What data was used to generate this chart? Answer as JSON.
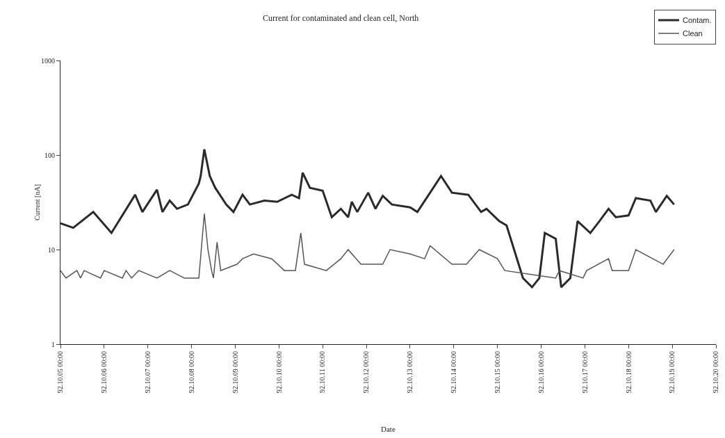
{
  "chart_data": {
    "type": "line",
    "title": "Current for contaminated and clean cell, North",
    "xlabel": "Date",
    "ylabel": "Current [nA]",
    "log": "y",
    "grid": false,
    "legend": "top right",
    "marker": "none",
    "line_style": "solid",
    "xlim": [
      "--10-05",
      "--10-20"
    ],
    "xticks": [
      {
        "value": "--10-05",
        "label": "92.10.05 00:00"
      },
      {
        "value": "--10-06",
        "label": "92.10.06 00:00"
      },
      {
        "value": "--10-07",
        "label": "92.10.07 00:00"
      },
      {
        "value": "--10-08",
        "label": "92.10.08 00:00"
      },
      {
        "value": "--10-09",
        "label": "92.10.09 00:00"
      },
      {
        "value": "--10-10",
        "label": "92.10.10 00:00"
      },
      {
        "value": "--10-11",
        "label": "92.10.11 00:00"
      },
      {
        "value": "--10-12",
        "label": "92.10.12 00:00"
      },
      {
        "value": "--10-13",
        "label": "92.10.13 00:00"
      },
      {
        "value": "--10-14",
        "label": "92.10.14 00:00"
      },
      {
        "value": "--10-15",
        "label": "92.10.15 00:00"
      },
      {
        "value": "--10-16",
        "label": "92.10.16 00:00"
      },
      {
        "value": "--10-17",
        "label": "92.10.17 00:00"
      },
      {
        "value": "--10-18",
        "label": "92.10.18 00:00"
      },
      {
        "value": "--10-19",
        "label": "92.10.19 00:00"
      },
      {
        "value": "--10-20",
        "label": "92.10.20 00:00"
      }
    ],
    "ylim": [
      1,
      1000
    ],
    "yticks": [
      1,
      10,
      100,
      1000
    ],
    "series": [
      {
        "name": "Contam.",
        "color": "#2a2a2a",
        "x": [
          "--10-05T00:00",
          "--10-05T07:00",
          "--10-05T18:00",
          "--10-06T04:00",
          "--10-06T17:00",
          "--10-06T21:00",
          "--10-07T05:00",
          "--10-07T08:00",
          "--10-07T12:00",
          "--10-07T16:00",
          "--10-07T22:00",
          "--10-08T04:00",
          "--10-08T05:00",
          "--10-08T07:00",
          "--10-08T10:00",
          "--10-08T13:00",
          "--10-08T19:00",
          "--10-08T23:00",
          "--10-09T04:00",
          "--10-09T08:00",
          "--10-09T16:00",
          "--10-09T23:00",
          "--10-10T07:00",
          "--10-10T11:00",
          "--10-10T13:00",
          "--10-10T17:00",
          "--10-11T00:00",
          "--10-11T05:00",
          "--10-11T10:00",
          "--10-11T14:00",
          "--10-11T16:00",
          "--10-11T19:00",
          "--10-12T01:00",
          "--10-12T05:00",
          "--10-12T09:00",
          "--10-12T14:00",
          "--10-13T00:00",
          "--10-13T04:00",
          "--10-13T11:00",
          "--10-13T17:00",
          "--10-13T23:00",
          "--10-14T08:00",
          "--10-14T15:00",
          "--10-14T18:00",
          "--10-15T01:00",
          "--10-15T05:00",
          "--10-15T14:00",
          "--10-15T19:00",
          "--10-15T23:00",
          "--10-16T02:00",
          "--10-16T08:00",
          "--10-16T11:00",
          "--10-16T16:00",
          "--10-16T20:00",
          "--10-17T03:00",
          "--10-17T08:00",
          "--10-17T13:00",
          "--10-17T17:00",
          "--10-18T00:00",
          "--10-18T04:00",
          "--10-18T12:00",
          "--10-18T15:00",
          "--10-18T21:00",
          "--10-19T01:00"
        ],
        "values": [
          19,
          17,
          25,
          15,
          38,
          25,
          43,
          25,
          33,
          27,
          30,
          50,
          60,
          115,
          60,
          45,
          30,
          25,
          38,
          30,
          33,
          32,
          38,
          35,
          65,
          45,
          42,
          22,
          27,
          22,
          32,
          25,
          40,
          27,
          37,
          30,
          28,
          25,
          40,
          60,
          40,
          38,
          25,
          27,
          20,
          18,
          5,
          4,
          5,
          15,
          13,
          4,
          5,
          20,
          15,
          20,
          27,
          22,
          23,
          35,
          33,
          25,
          37,
          30
        ]
      },
      {
        "name": "Clean",
        "color": "#555555",
        "x": [
          "--10-05T00:00",
          "--10-05T03:00",
          "--10-05T09:00",
          "--10-05T11:00",
          "--10-05T13:00",
          "--10-05T22:00",
          "--10-06T00:00",
          "--10-06T10:00",
          "--10-06T12:00",
          "--10-06T15:00",
          "--10-06T19:00",
          "--10-07T05:00",
          "--10-07T12:00",
          "--10-07T20:00",
          "--10-08T04:00",
          "--10-08T07:00",
          "--10-08T09:00",
          "--10-08T11:00",
          "--10-08T12:00",
          "--10-08T14:00",
          "--10-08T16:00",
          "--10-09T01:00",
          "--10-09T04:00",
          "--10-09T10:00",
          "--10-09T20:00",
          "--10-10T03:00",
          "--10-10T09:00",
          "--10-10T12:00",
          "--10-10T14:00",
          "--10-11T02:00",
          "--10-11T10:00",
          "--10-11T14:00",
          "--10-11T21:00",
          "--10-12T09:00",
          "--10-12T13:00",
          "--10-13T00:00",
          "--10-13T08:00",
          "--10-13T11:00",
          "--10-13T23:00",
          "--10-14T07:00",
          "--10-14T14:00",
          "--10-15T00:00",
          "--10-15T04:00",
          "--10-16T08:00",
          "--10-16T10:00",
          "--10-16T23:00",
          "--10-17T01:00",
          "--10-17T13:00",
          "--10-17T15:00",
          "--10-18T00:00",
          "--10-18T04:00",
          "--10-18T19:00",
          "--10-19T01:00"
        ],
        "values": [
          6,
          5,
          6,
          5,
          6,
          5,
          6,
          5,
          6,
          5,
          6,
          5,
          6,
          5,
          5,
          24,
          10,
          6,
          5,
          12,
          6,
          7,
          8,
          9,
          8,
          6,
          6,
          15,
          7,
          6,
          8,
          10,
          7,
          7,
          10,
          9,
          8,
          11,
          7,
          7,
          10,
          8,
          6,
          5,
          6,
          5,
          6,
          8,
          6,
          6,
          10,
          7,
          10
        ]
      }
    ]
  }
}
